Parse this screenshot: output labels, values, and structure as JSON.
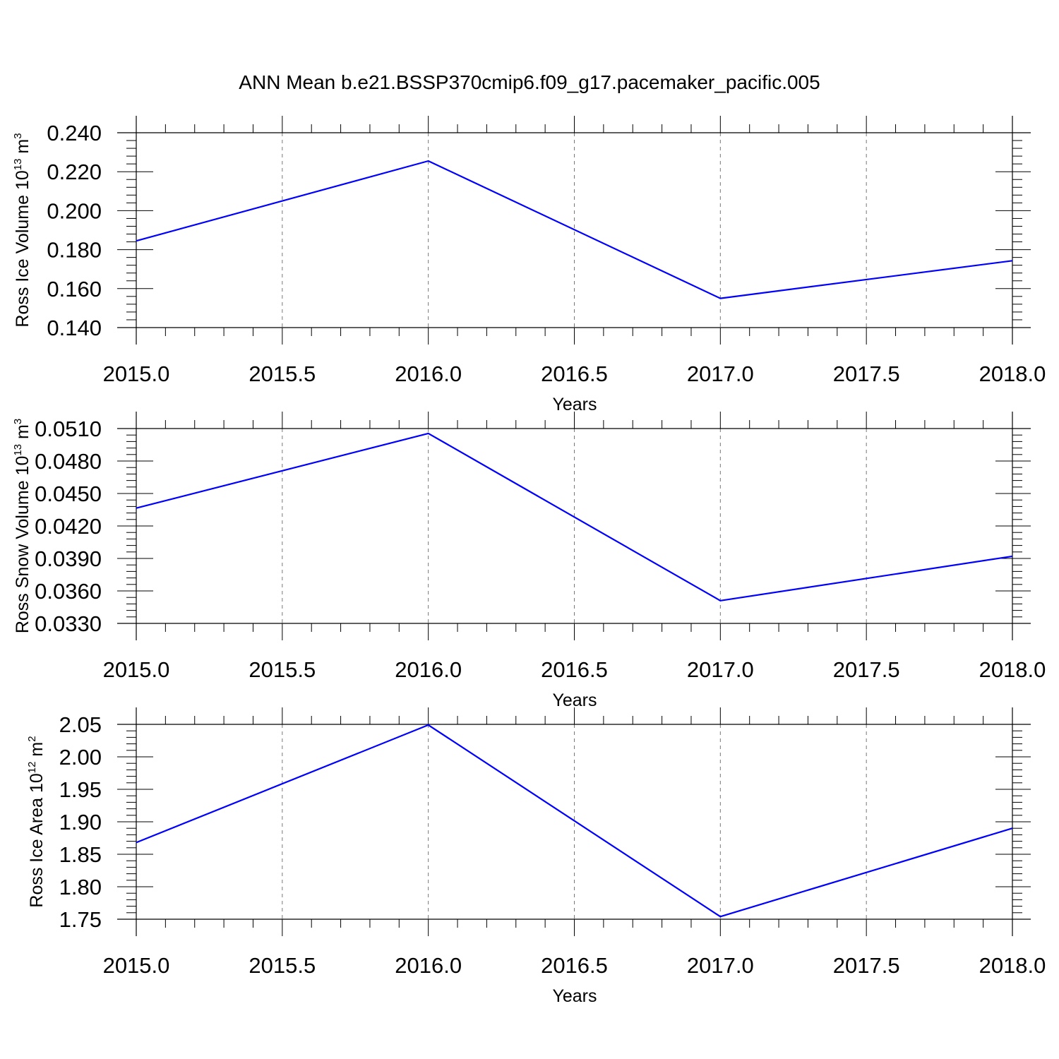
{
  "figure": {
    "title": "ANN Mean b.e21.BSSP370cmip6.f09_g17.pacemaker_pacific.005"
  },
  "colors": {
    "series": "#0000ff",
    "axes": "#000000",
    "grid": "#777777"
  },
  "chart_data": [
    {
      "type": "line",
      "ylabel": {
        "main": "Ross Ice Volume 10",
        "exp": "13",
        "unit": " m",
        "unit_exp": "3"
      },
      "xlabel": "Years",
      "x": [
        2015.0,
        2016.0,
        2017.0,
        2018.0
      ],
      "series": [
        {
          "values": [
            0.1845,
            0.2255,
            0.155,
            0.1743
          ]
        }
      ],
      "xlim": [
        2015.0,
        2018.0
      ],
      "ylim": [
        0.14,
        0.24
      ],
      "xticks": [
        2015.0,
        2015.5,
        2016.0,
        2016.5,
        2017.0,
        2017.5,
        2018.0
      ],
      "xtick_labels": [
        "2015.0",
        "2015.5",
        "2016.0",
        "2016.5",
        "2017.0",
        "2017.5",
        "2018.0"
      ],
      "yticks": [
        0.14,
        0.16,
        0.18,
        0.2,
        0.22,
        0.24
      ],
      "ytick_labels": [
        "0.140",
        "0.160",
        "0.180",
        "0.200",
        "0.220",
        "0.240"
      ],
      "y_minor_step": 0.004,
      "grid": "vertical dashed at major x ticks"
    },
    {
      "type": "line",
      "ylabel": {
        "main": "Ross Snow Volume 10",
        "exp": "13",
        "unit": " m",
        "unit_exp": "3"
      },
      "xlabel": "Years",
      "x": [
        2015.0,
        2016.0,
        2017.0,
        2018.0
      ],
      "series": [
        {
          "values": [
            0.04365,
            0.05055,
            0.0351,
            0.0392
          ]
        }
      ],
      "xlim": [
        2015.0,
        2018.0
      ],
      "ylim": [
        0.033,
        0.051
      ],
      "xticks": [
        2015.0,
        2015.5,
        2016.0,
        2016.5,
        2017.0,
        2017.5,
        2018.0
      ],
      "xtick_labels": [
        "2015.0",
        "2015.5",
        "2016.0",
        "2016.5",
        "2017.0",
        "2017.5",
        "2018.0"
      ],
      "yticks": [
        0.033,
        0.036,
        0.039,
        0.042,
        0.045,
        0.048,
        0.051
      ],
      "ytick_labels": [
        "0.0330",
        "0.0360",
        "0.0390",
        "0.0420",
        "0.0450",
        "0.0480",
        "0.0510"
      ],
      "y_minor_step": 0.0006,
      "grid": "vertical dashed at major x ticks"
    },
    {
      "type": "line",
      "ylabel": {
        "main": "Ross Ice Area 10",
        "exp": "12",
        "unit": " m",
        "unit_exp": "2"
      },
      "xlabel": "Years",
      "x": [
        2015.0,
        2016.0,
        2017.0,
        2018.0
      ],
      "series": [
        {
          "values": [
            1.868,
            2.049,
            1.754,
            1.89
          ]
        }
      ],
      "xlim": [
        2015.0,
        2018.0
      ],
      "ylim": [
        1.75,
        2.05
      ],
      "xticks": [
        2015.0,
        2015.5,
        2016.0,
        2016.5,
        2017.0,
        2017.5,
        2018.0
      ],
      "xtick_labels": [
        "2015.0",
        "2015.5",
        "2016.0",
        "2016.5",
        "2017.0",
        "2017.5",
        "2018.0"
      ],
      "yticks": [
        1.75,
        1.8,
        1.85,
        1.9,
        1.95,
        2.0,
        2.05
      ],
      "ytick_labels": [
        "1.75",
        "1.80",
        "1.85",
        "1.90",
        "1.95",
        "2.00",
        "2.05"
      ],
      "y_minor_step": 0.01,
      "grid": "vertical dashed at major x ticks"
    }
  ]
}
